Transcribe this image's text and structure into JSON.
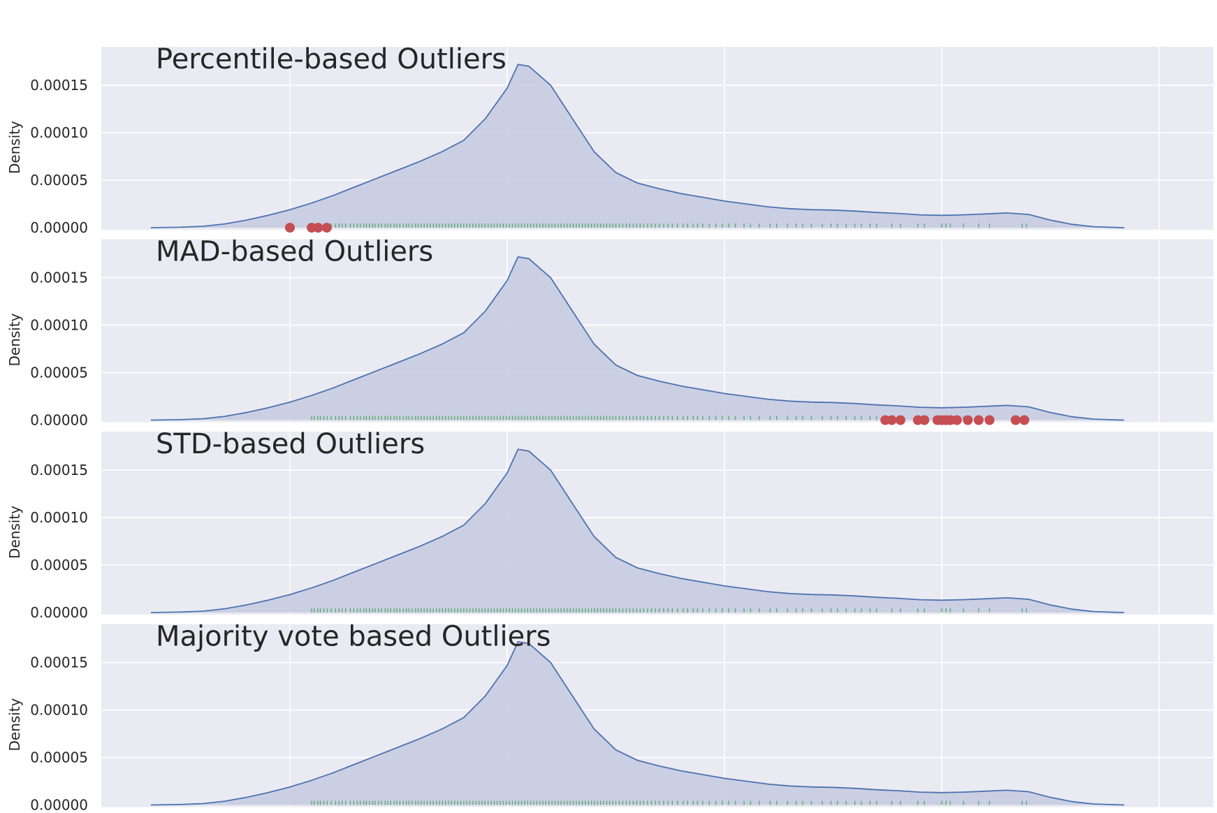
{
  "chart_data": [
    {
      "type": "area",
      "title": "Percentile-based Outliers",
      "ylabel": "Density",
      "xlabel": "",
      "xlim": [
        -4350,
        19900
      ],
      "ylim": [
        0,
        0.000178
      ],
      "xticks": [
        "0",
        "5000",
        "10000",
        "15000",
        "20000"
      ],
      "yticks": [
        "0.00000",
        "0.00005",
        "0.00010",
        "0.00015"
      ],
      "grid": true,
      "outliers": [
        0,
        500,
        650,
        850
      ]
    },
    {
      "type": "area",
      "title": "MAD-based Outliers",
      "ylabel": "Density",
      "xlabel": "",
      "xlim": [
        -4350,
        19900
      ],
      "ylim": [
        0,
        0.000178
      ],
      "xticks": [
        "0",
        "5000",
        "10000",
        "15000",
        "20000"
      ],
      "yticks": [
        "0.00000",
        "0.00005",
        "0.00010",
        "0.00015"
      ],
      "grid": true,
      "outliers": [
        13700,
        13850,
        14050,
        14450,
        14600,
        14900,
        15000,
        15100,
        15200,
        15350,
        15600,
        15850,
        16100,
        16700,
        16900
      ]
    },
    {
      "type": "area",
      "title": "STD-based Outliers",
      "ylabel": "Density",
      "xlabel": "",
      "xlim": [
        -4350,
        19900
      ],
      "ylim": [
        0,
        0.000178
      ],
      "xticks": [
        "0",
        "5000",
        "10000",
        "15000",
        "20000"
      ],
      "yticks": [
        "0.00000",
        "0.00005",
        "0.00010",
        "0.00015"
      ],
      "grid": true,
      "outliers": []
    },
    {
      "type": "area",
      "title": "Majority vote based Outliers",
      "ylabel": "Density",
      "xlabel": "",
      "xlim": [
        -4350,
        19900
      ],
      "ylim": [
        0,
        0.000178
      ],
      "xticks": [
        "0",
        "5000",
        "10000",
        "15000",
        "20000"
      ],
      "yticks": [
        "0.00000",
        "0.00005",
        "0.00010",
        "0.00015"
      ],
      "grid": true,
      "outliers": []
    }
  ],
  "kde": {
    "x": [
      -3200,
      -2500,
      -2000,
      -1500,
      -1000,
      -500,
      0,
      500,
      1000,
      1500,
      2000,
      2500,
      3000,
      3500,
      4000,
      4500,
      5000,
      5250,
      5500,
      6000,
      6500,
      7000,
      7500,
      8000,
      8500,
      9000,
      9500,
      10000,
      10500,
      11000,
      11500,
      12000,
      12500,
      13000,
      13500,
      14000,
      14500,
      15000,
      15500,
      16000,
      16500,
      17000,
      17500,
      18000,
      18500,
      19000,
      19200
    ],
    "y": [
      0,
      5e-07,
      1.5e-06,
      4e-06,
      8e-06,
      1.3e-05,
      1.9e-05,
      2.6e-05,
      3.4e-05,
      4.3e-05,
      5.2e-05,
      6.1e-05,
      7e-05,
      8e-05,
      9.2e-05,
      0.000115,
      0.000147,
      0.000172,
      0.00017,
      0.00015,
      0.000115,
      8e-05,
      5.8e-05,
      4.7e-05,
      4.1e-05,
      3.6e-05,
      3.2e-05,
      2.8e-05,
      2.5e-05,
      2.2e-05,
      2e-05,
      1.9e-05,
      1.85e-05,
      1.75e-05,
      1.6e-05,
      1.5e-05,
      1.35e-05,
      1.3e-05,
      1.35e-05,
      1.45e-05,
      1.55e-05,
      1.4e-05,
      8e-06,
      3.5e-06,
      1e-06,
      2e-07,
      0
    ]
  },
  "rug": [
    500,
    560,
    640,
    700,
    780,
    860,
    950,
    1050,
    1130,
    1200,
    1280,
    1390,
    1470,
    1550,
    1620,
    1700,
    1760,
    1830,
    1900,
    1960,
    2040,
    2110,
    2190,
    2250,
    2320,
    2400,
    2460,
    2530,
    2610,
    2680,
    2740,
    2810,
    2890,
    2950,
    3020,
    3090,
    3160,
    3230,
    3300,
    3370,
    3440,
    3510,
    3580,
    3650,
    3720,
    3790,
    3860,
    3930,
    4000,
    4070,
    4140,
    4210,
    4280,
    4350,
    4420,
    4490,
    4560,
    4630,
    4700,
    4770,
    4840,
    4910,
    4980,
    5050,
    5120,
    5190,
    5260,
    5330,
    5400,
    5470,
    5540,
    5610,
    5680,
    5750,
    5820,
    5890,
    5960,
    6030,
    6100,
    6170,
    6240,
    6310,
    6380,
    6450,
    6520,
    6590,
    6660,
    6730,
    6800,
    6870,
    6940,
    7010,
    7080,
    7150,
    7220,
    7290,
    7360,
    7430,
    7500,
    7580,
    7660,
    7740,
    7820,
    7900,
    7980,
    8060,
    8140,
    8230,
    8320,
    8410,
    8500,
    8600,
    8700,
    8800,
    8920,
    9050,
    9150,
    9280,
    9380,
    9500,
    9650,
    9800,
    9950,
    10100,
    10250,
    10450,
    10600,
    10800,
    11050,
    11200,
    11450,
    11650,
    11800,
    12000,
    12250,
    12450,
    12600,
    12800,
    13000,
    13150,
    13350,
    13500,
    13850,
    14050,
    14450,
    14600,
    15000,
    15100,
    15200,
    15500,
    15850,
    16100,
    16850,
    16950
  ],
  "colors": {
    "panel_bg": "#eaeaf2",
    "grid": "#ffffff",
    "kde_line": "#4c72b0",
    "kde_fill": "#c4cae0",
    "rug": "#55a868",
    "outlier": "#c44e52",
    "text": "#262626"
  }
}
